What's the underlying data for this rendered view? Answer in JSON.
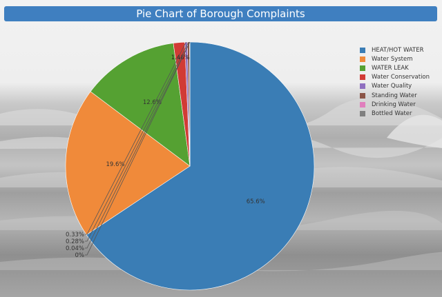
{
  "title": "Pie Chart of Borough Complaints",
  "background": "ocean waves photo (grayscale)",
  "chart_data": {
    "type": "pie",
    "categories": [
      "HEAT/HOT WATER",
      "Water System",
      "WATER LEAK",
      "Water Conservation",
      "Water Quality",
      "Standing Water",
      "Drinking Water",
      "Bottled Water"
    ],
    "values": [
      65.6,
      19.6,
      12.6,
      1.48,
      0.33,
      0.28,
      0.04,
      0
    ],
    "labels": [
      "65.6%",
      "19.6%",
      "12.6%",
      "1.48%",
      "0.33%",
      "0.28%",
      "0.04%",
      "0%"
    ],
    "colors": [
      "#3a7db5",
      "#f08a3a",
      "#55a132",
      "#d13b35",
      "#8f6fc0",
      "#8b5446",
      "#e07fbd",
      "#7f7f7f"
    ],
    "legend_position": "top-right",
    "start": "12 o'clock",
    "direction": "clockwise"
  }
}
